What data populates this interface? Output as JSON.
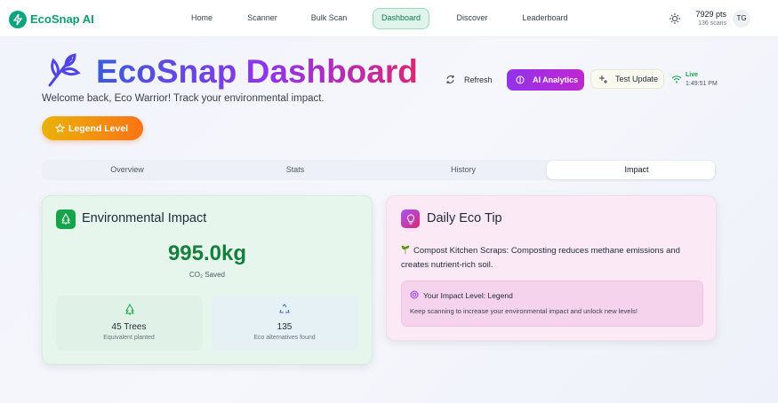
{
  "nav": {
    "brand": "EcoSnap AI",
    "links": [
      "Home",
      "Scanner",
      "Bulk Scan",
      "Dashboard",
      "Discover",
      "Leaderboard"
    ],
    "points": "7929 pts",
    "scans": "136 scans",
    "avatar": "TG"
  },
  "header": {
    "title": "EcoSnap Dashboard",
    "subtitle": "Welcome back, Eco Warrior! Track your environmental impact.",
    "badge": "Legend Level",
    "actions": {
      "refresh": "Refresh",
      "analytics": "AI Analytics",
      "test": "Test Update",
      "live": "Live",
      "time": "1:49:51 PM"
    }
  },
  "tabs": [
    "Overview",
    "Stats",
    "History",
    "Impact"
  ],
  "impact_card": {
    "title": "Environmental Impact",
    "value": "995.0kg",
    "value_label": "CO₂ Saved",
    "stats": [
      {
        "value": "45 Trees",
        "label": "Equivalent planted"
      },
      {
        "value": "135",
        "label": "Eco alternatives found"
      }
    ]
  },
  "tip_card": {
    "title": "Daily Eco Tip",
    "tip": "Compost Kitchen Scraps: Composting reduces methane emissions and creates nutrient-rich soil.",
    "level_title": "Your Impact Level: Legend",
    "level_text": "Keep scanning to increase your environmental impact and unlock new levels!"
  }
}
